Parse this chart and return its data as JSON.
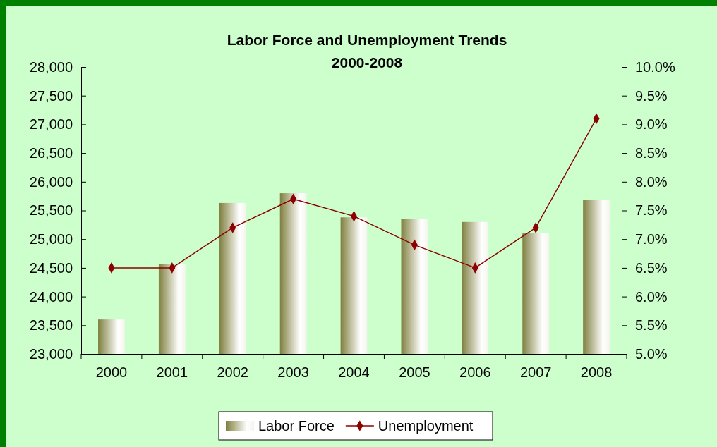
{
  "chart_data": {
    "type": "bar",
    "title": "Labor Force and Unemployment Trends",
    "subtitle": "2000-2008",
    "categories": [
      "2000",
      "2001",
      "2002",
      "2003",
      "2004",
      "2005",
      "2006",
      "2007",
      "2008"
    ],
    "series": [
      {
        "name": "Labor Force",
        "color": "#7f7f3f",
        "values": [
          23600,
          24570,
          25630,
          25800,
          25380,
          25350,
          25300,
          25110,
          25690
        ]
      },
      {
        "name": "Unemployment",
        "type": "line",
        "axis": "y2",
        "color": "#8b0000",
        "marker": "diamond",
        "values": [
          6.5,
          6.5,
          7.2,
          7.7,
          7.4,
          6.9,
          6.5,
          7.2,
          9.1
        ]
      }
    ],
    "ylim": [
      23000,
      28000
    ],
    "yticks": [
      {
        "value": 23000,
        "label": "23,000"
      },
      {
        "value": 23500,
        "label": "23,500"
      },
      {
        "value": 24000,
        "label": "24,000"
      },
      {
        "value": 24500,
        "label": "24,500"
      },
      {
        "value": 25000,
        "label": "25,000"
      },
      {
        "value": 25500,
        "label": "25,500"
      },
      {
        "value": 26000,
        "label": "26,000"
      },
      {
        "value": 26500,
        "label": "26,500"
      },
      {
        "value": 27000,
        "label": "27,000"
      },
      {
        "value": 27500,
        "label": "27,500"
      },
      {
        "value": 28000,
        "label": "28,000"
      }
    ],
    "y2lim": [
      5,
      10
    ],
    "y2ticks": [
      {
        "value": 5,
        "label": "5.0%"
      },
      {
        "value": 5.5,
        "label": "5.5%"
      },
      {
        "value": 6,
        "label": "6.0%"
      },
      {
        "value": 6.5,
        "label": "6.5%"
      },
      {
        "value": 7,
        "label": "7.0%"
      },
      {
        "value": 7.5,
        "label": "7.5%"
      },
      {
        "value": 8,
        "label": "8.0%"
      },
      {
        "value": 8.5,
        "label": "8.5%"
      },
      {
        "value": 9,
        "label": "9.0%"
      },
      {
        "value": 9.5,
        "label": "9.5%"
      },
      {
        "value": 10,
        "label": "10.0%"
      }
    ],
    "legend": "bottom",
    "grid": false
  }
}
